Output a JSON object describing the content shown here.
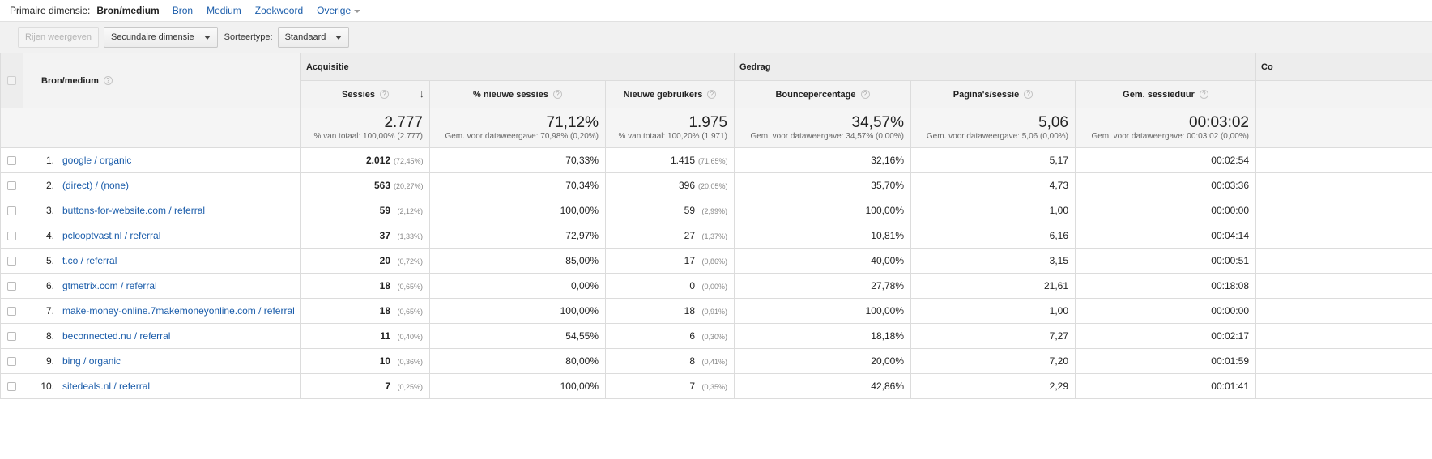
{
  "dimension_bar": {
    "label": "Primaire dimensie:",
    "active": "Bron/medium",
    "options": [
      "Bron",
      "Medium",
      "Zoekwoord",
      "Overige"
    ]
  },
  "toolbar": {
    "show_rows": "Rijen weergeven",
    "secondary_dimension": "Secundaire dimensie",
    "sort_type_label": "Sorteertype:",
    "sort_type_value": "Standaard"
  },
  "table": {
    "group_headers": {
      "acquisition": "Acquisitie",
      "behavior": "Gedrag",
      "conversions": "Co"
    },
    "source_header": "Bron/medium",
    "columns": {
      "sessions": "Sessies",
      "new_sessions_pct": "% nieuwe sessies",
      "new_users": "Nieuwe gebruikers",
      "bounce_rate": "Bouncepercentage",
      "pages_per_session": "Pagina's/sessie",
      "avg_duration": "Gem. sessieduur"
    },
    "totals": {
      "sessions": "2.777",
      "sessions_sub": "% van totaal: 100,00% (2.777)",
      "new_sessions_pct": "71,12%",
      "new_sessions_pct_sub": "Gem. voor dataweergave: 70,98% (0,20%)",
      "new_users": "1.975",
      "new_users_sub": "% van totaal: 100,20% (1.971)",
      "bounce_rate": "34,57%",
      "bounce_rate_sub": "Gem. voor dataweergave: 34,57% (0,00%)",
      "pages_per_session": "5,06",
      "pages_per_session_sub": "Gem. voor dataweergave: 5,06 (0,00%)",
      "avg_duration": "00:03:02",
      "avg_duration_sub": "Gem. voor dataweergave: 00:03:02 (0,00%)"
    },
    "rows": [
      {
        "idx": "1.",
        "source": "google / organic",
        "sessions": "2.012",
        "sessions_pct": "(72,45%)",
        "new_sessions_pct": "70,33%",
        "new_users": "1.415",
        "new_users_pct": "(71,65%)",
        "bounce_rate": "32,16%",
        "pages_per_session": "5,17",
        "avg_duration": "00:02:54"
      },
      {
        "idx": "2.",
        "source": "(direct) / (none)",
        "sessions": "563",
        "sessions_pct": "(20,27%)",
        "new_sessions_pct": "70,34%",
        "new_users": "396",
        "new_users_pct": "(20,05%)",
        "bounce_rate": "35,70%",
        "pages_per_session": "4,73",
        "avg_duration": "00:03:36"
      },
      {
        "idx": "3.",
        "source": "buttons-for-website.com / referral",
        "sessions": "59",
        "sessions_pct": "(2,12%)",
        "new_sessions_pct": "100,00%",
        "new_users": "59",
        "new_users_pct": "(2,99%)",
        "bounce_rate": "100,00%",
        "pages_per_session": "1,00",
        "avg_duration": "00:00:00"
      },
      {
        "idx": "4.",
        "source": "pclooptvast.nl / referral",
        "sessions": "37",
        "sessions_pct": "(1,33%)",
        "new_sessions_pct": "72,97%",
        "new_users": "27",
        "new_users_pct": "(1,37%)",
        "bounce_rate": "10,81%",
        "pages_per_session": "6,16",
        "avg_duration": "00:04:14"
      },
      {
        "idx": "5.",
        "source": "t.co / referral",
        "sessions": "20",
        "sessions_pct": "(0,72%)",
        "new_sessions_pct": "85,00%",
        "new_users": "17",
        "new_users_pct": "(0,86%)",
        "bounce_rate": "40,00%",
        "pages_per_session": "3,15",
        "avg_duration": "00:00:51"
      },
      {
        "idx": "6.",
        "source": "gtmetrix.com / referral",
        "sessions": "18",
        "sessions_pct": "(0,65%)",
        "new_sessions_pct": "0,00%",
        "new_users": "0",
        "new_users_pct": "(0,00%)",
        "bounce_rate": "27,78%",
        "pages_per_session": "21,61",
        "avg_duration": "00:18:08"
      },
      {
        "idx": "7.",
        "source": "make-money-online.7makemoneyonline.com / referral",
        "sessions": "18",
        "sessions_pct": "(0,65%)",
        "new_sessions_pct": "100,00%",
        "new_users": "18",
        "new_users_pct": "(0,91%)",
        "bounce_rate": "100,00%",
        "pages_per_session": "1,00",
        "avg_duration": "00:00:00"
      },
      {
        "idx": "8.",
        "source": "beconnected.nu / referral",
        "sessions": "11",
        "sessions_pct": "(0,40%)",
        "new_sessions_pct": "54,55%",
        "new_users": "6",
        "new_users_pct": "(0,30%)",
        "bounce_rate": "18,18%",
        "pages_per_session": "7,27",
        "avg_duration": "00:02:17"
      },
      {
        "idx": "9.",
        "source": "bing / organic",
        "sessions": "10",
        "sessions_pct": "(0,36%)",
        "new_sessions_pct": "80,00%",
        "new_users": "8",
        "new_users_pct": "(0,41%)",
        "bounce_rate": "20,00%",
        "pages_per_session": "7,20",
        "avg_duration": "00:01:59"
      },
      {
        "idx": "10.",
        "source": "sitedeals.nl / referral",
        "sessions": "7",
        "sessions_pct": "(0,25%)",
        "new_sessions_pct": "100,00%",
        "new_users": "7",
        "new_users_pct": "(0,35%)",
        "bounce_rate": "42,86%",
        "pages_per_session": "2,29",
        "avg_duration": "00:01:41"
      }
    ]
  },
  "icons": {
    "help": "help-icon",
    "sort_arrow": "sort-arrow-down-icon",
    "dropdown": "chevron-down-icon"
  },
  "colors": {
    "link": "#1a5caa",
    "header_bg": "#ededed",
    "toolbar_bg": "#f1f1f1"
  }
}
